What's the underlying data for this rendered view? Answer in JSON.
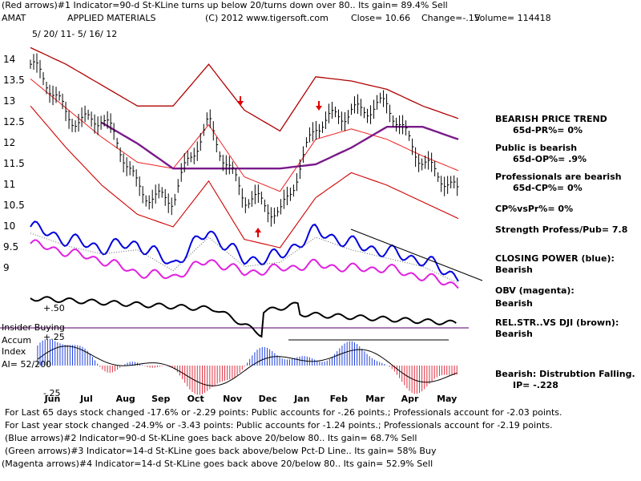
{
  "header": {
    "line1": "(Red arrows)#1 Indicator=90-d St-KLine turns up below 20/turns down over 80.. Its gain= 89.4% Sell",
    "ticker": "AMAT",
    "company": "APPLIED MATERIALS",
    "copyright": "(C) 2012 www.tigersoft.com",
    "close": "Close=  10.66",
    "change": "Change=-.15",
    "volume": "Volume=  114418",
    "date_range": "5/ 20/ 11-  5/ 16/ 12"
  },
  "left_labels": {
    "insider": "Insider Buying",
    "accum": "Accum",
    "index": "Index",
    "ai": "AI= 52/200",
    "plus50": "+.50",
    "plus25": "+.25",
    "minus25": "-.25"
  },
  "right_panel": {
    "trend_title": "BEARISH PRICE TREND",
    "pr": "65d-PR%= 0%",
    "public_title": "Public is bearish",
    "op": "65d-OP%= .9%",
    "pro_title": "Professionals are bearish",
    "cp": "65d-CP%= 0%",
    "cpvspr": "CP%vsPr%=  0%",
    "strength": "Strength Profess/Pub= 7.8",
    "cp_title": "CLOSING POWER (blue):",
    "cp_val": "Bearish",
    "obv_title": "OBV (magenta):",
    "obv_val": "Bearish",
    "rel_title": "REL.STR..VS DJI (brown):",
    "rel_val": "Bearish",
    "dist_title": "Bearish: Distrubtion Falling.",
    "ip": "IP= -.228"
  },
  "footer": {
    "l1": "For Last 65 days stock changed -17.6% or -2.29 points:  Public accounts for -.26 points.;  Professionals account for -2.03 points.",
    "l2": "For Last year stock changed -24.9% or -3.43 points:  Public accounts for -1.24 points.;  Professionals account for -2.19 points.",
    "l3": "(Blue arrows)#2 Indicator=90-d St-KLine goes back above 20/below 80.. Its gain= 68.7% Sell",
    "l4": "(Green arrows)#3 Indicator=14-d St-KLine goes back above/below Pct-D Line.. Its gain= 58% Buy",
    "l5": "(Magenta arrows)#4 Indicator=14-d St-KLine goes back above 20/below 80.. Its gain= 52.9% Sell"
  },
  "chart_data": {
    "type": "line",
    "title": "AMAT APPLIED MATERIALS",
    "x_tick_labels": [
      "Jun",
      "Jul",
      "Aug",
      "Sep",
      "Oct",
      "Nov",
      "Dec",
      "Jan",
      "Feb",
      "Mar",
      "Apr",
      "May"
    ],
    "y_tick_labels": [
      "14",
      "13.5",
      "13",
      "12.5",
      "12",
      "11.5",
      "11",
      "10.5",
      "10",
      "9.5",
      "9"
    ],
    "ylim": [
      8.9,
      14.25
    ],
    "months": [
      0,
      1,
      2,
      3,
      4,
      5,
      6,
      7,
      8,
      9,
      10,
      11,
      12
    ],
    "series": [
      {
        "name": "Price (close)",
        "values": [
          13.9,
          12.7,
          12.6,
          11.0,
          10.6,
          12.6,
          10.6,
          10.4,
          12.3,
          12.9,
          12.8,
          11.7,
          10.66
        ]
      },
      {
        "name": "Upper band",
        "values": [
          14.3,
          13.9,
          13.4,
          12.9,
          12.9,
          13.9,
          12.8,
          12.3,
          13.6,
          13.5,
          13.3,
          12.9,
          12.6
        ]
      },
      {
        "name": "Lower band",
        "values": [
          12.9,
          11.9,
          11.0,
          10.3,
          10.0,
          11.1,
          9.7,
          9.5,
          10.7,
          11.3,
          11.0,
          10.6,
          10.2
        ]
      },
      {
        "name": "Moving average (purple)",
        "values": [
          null,
          null,
          12.5,
          12.0,
          11.4,
          11.4,
          11.4,
          11.4,
          11.5,
          11.9,
          12.4,
          12.4,
          12.1
        ]
      },
      {
        "name": "Closing Power (blue)",
        "values": [
          10.0,
          9.7,
          9.5,
          9.6,
          9.1,
          9.9,
          9.2,
          9.3,
          9.9,
          9.6,
          9.4,
          9.2,
          8.8
        ]
      },
      {
        "name": "OBV (magenta)",
        "values": [
          9.6,
          9.4,
          9.2,
          8.9,
          8.8,
          9.2,
          8.9,
          9.0,
          9.1,
          9.0,
          9.0,
          8.8,
          8.6
        ]
      }
    ],
    "annotations": [
      "Red arrows = #1 Indicator sell/buy signals"
    ]
  }
}
